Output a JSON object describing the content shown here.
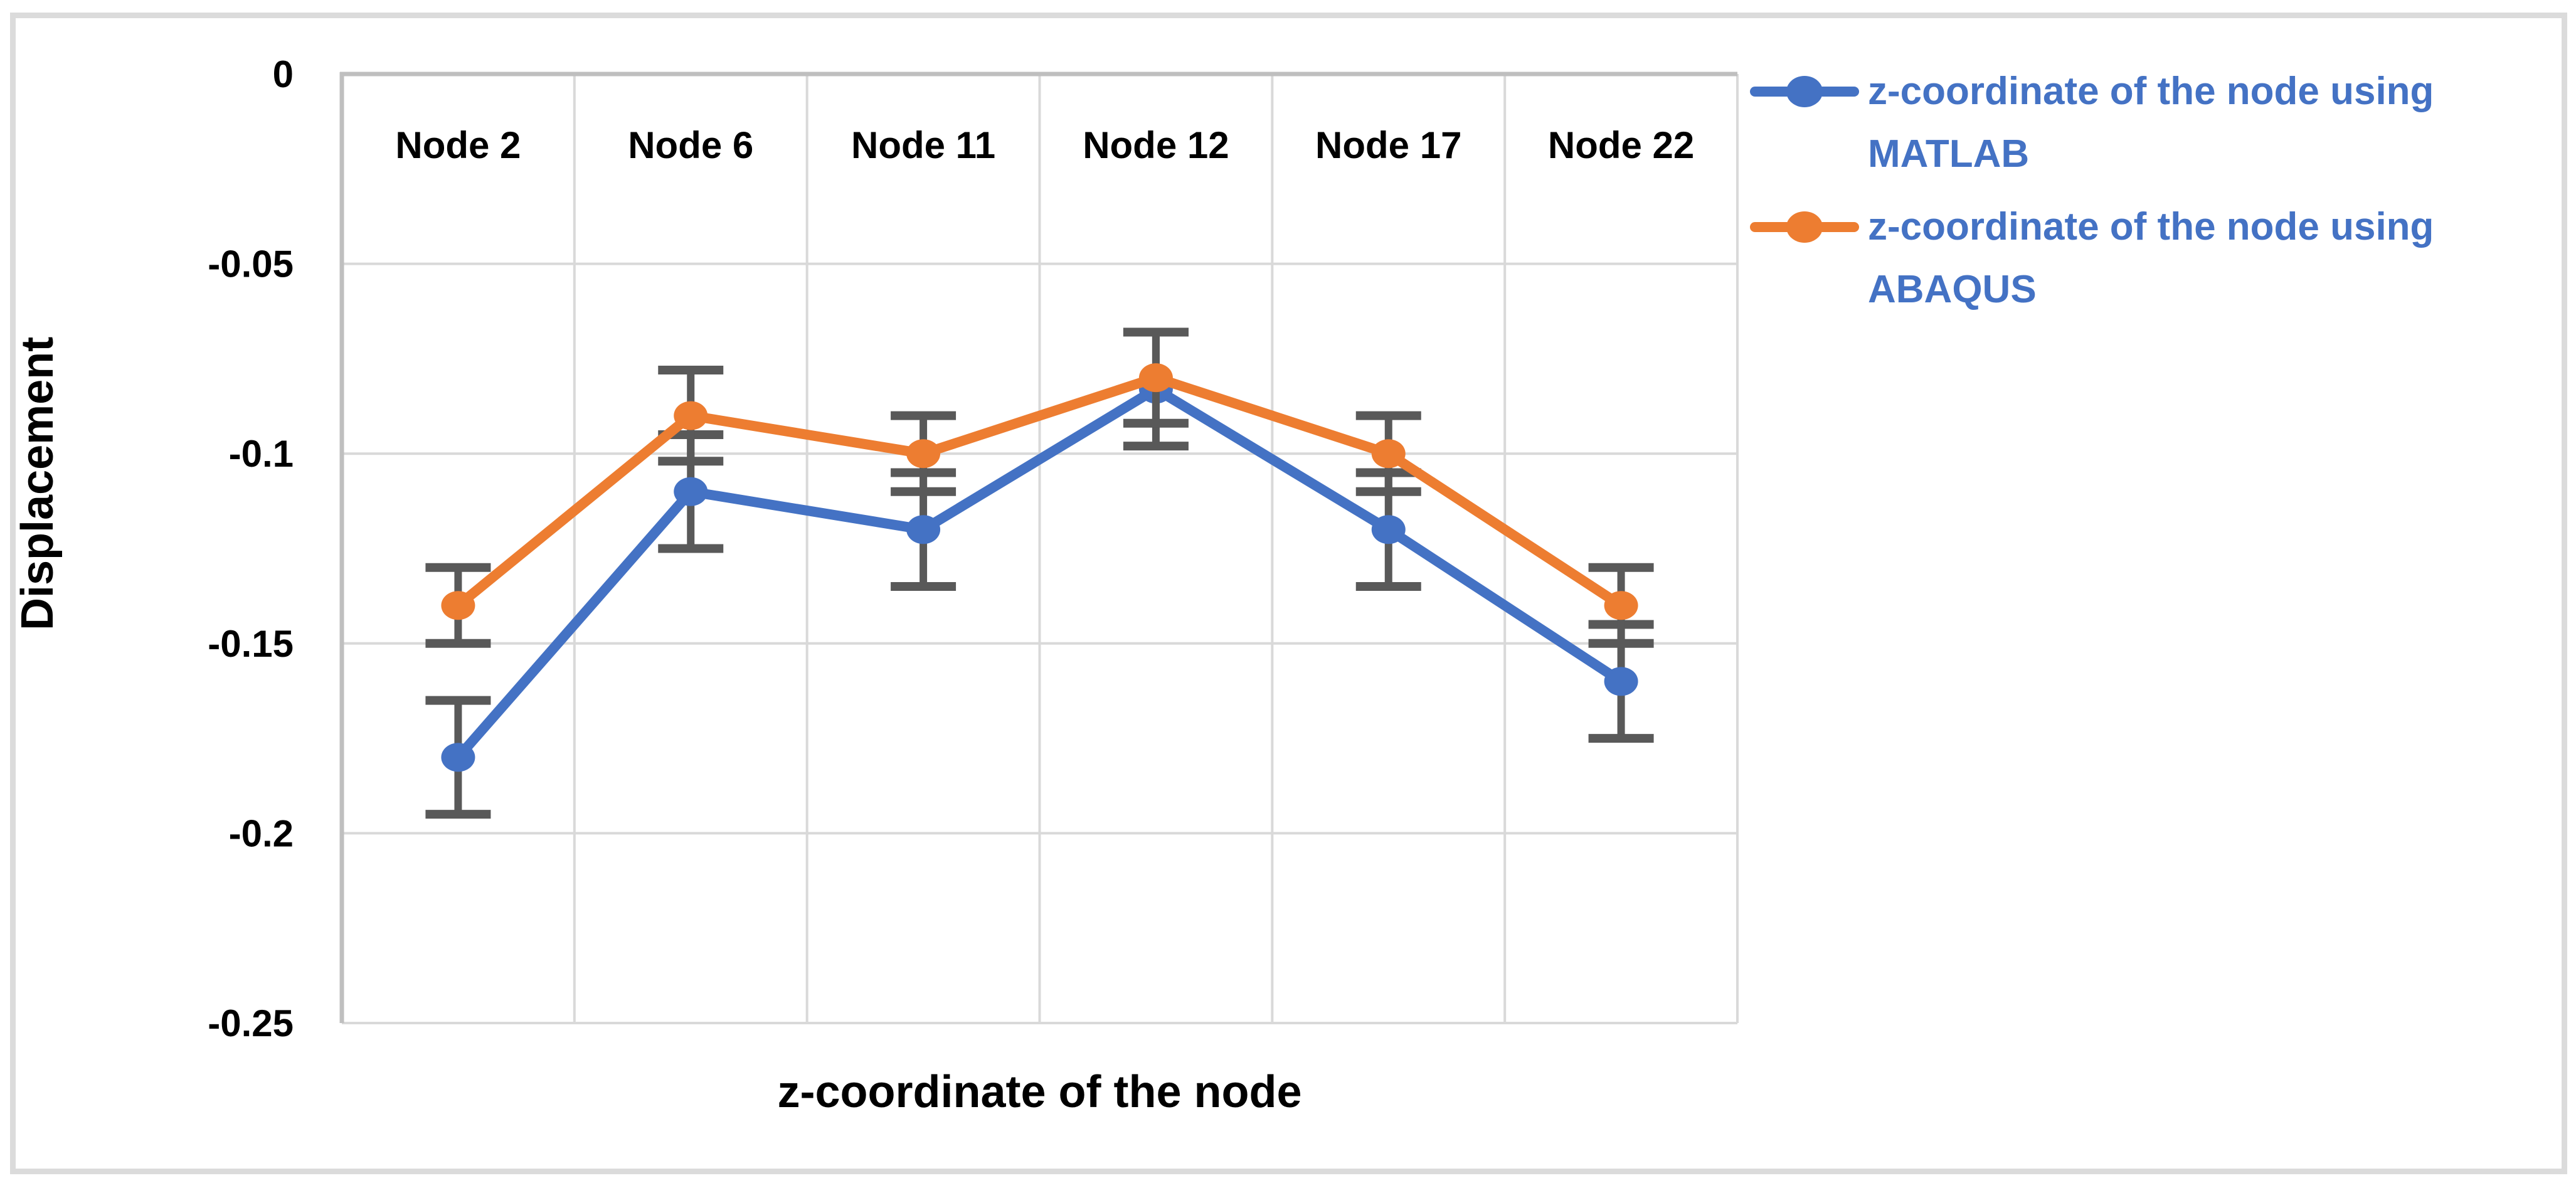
{
  "chart_data": {
    "type": "line",
    "title": "",
    "xlabel": "z-coordinate of the node",
    "ylabel": "Displacement",
    "categories": [
      "Node 2",
      "Node 6",
      "Node 11",
      "Node 12",
      "Node 17",
      "Node 22"
    ],
    "ylim": [
      -0.25,
      0
    ],
    "ytick_step": 0.05,
    "yticks": [
      0,
      -0.05,
      -0.1,
      -0.15,
      -0.2,
      -0.25
    ],
    "ytick_labels": [
      "0",
      "-0.05",
      "-0.1",
      "-0.15",
      "-0.2",
      "-0.25"
    ],
    "grid": true,
    "legend_position": "right",
    "series": [
      {
        "name": "z-coordinate of the node using MATLAB",
        "legend_lines": [
          "z-coordinate of the node using",
          "MATLAB"
        ],
        "color": "#4472C4",
        "values": [
          -0.18,
          -0.11,
          -0.12,
          -0.083,
          -0.12,
          -0.16
        ],
        "error": [
          0.015,
          0.015,
          0.015,
          0.015,
          0.015,
          0.015
        ]
      },
      {
        "name": "z-coordinate of the node using ABAQUS",
        "legend_lines": [
          "z-coordinate of the node using",
          "ABAQUS"
        ],
        "color": "#ED7D31",
        "values": [
          -0.14,
          -0.09,
          -0.1,
          -0.08,
          -0.1,
          -0.14
        ],
        "error": [
          0.01,
          0.012,
          0.01,
          0.012,
          0.01,
          0.01
        ]
      }
    ],
    "colors": {
      "error_bar": "#595959",
      "gridline": "#D9D9D9",
      "axis_line": "#BFBFBF",
      "legend_text": "#4472C4",
      "tick_label": "#000000",
      "chart_border": "#DBDBDB"
    }
  }
}
